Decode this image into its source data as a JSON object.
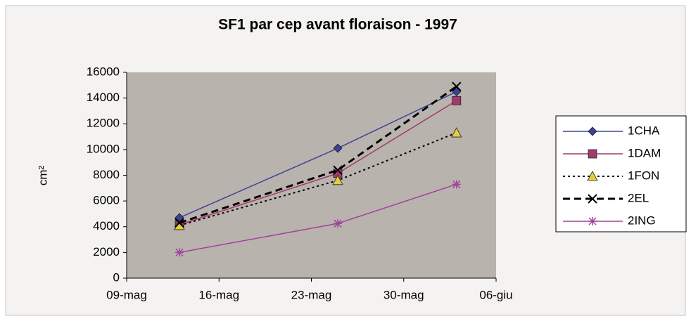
{
  "chart_data": {
    "type": "line",
    "title": "SF1 par cep avant floraison - 1997",
    "ylabel": "cm²",
    "x": [
      "13-mag",
      "25-mag",
      "03-giu"
    ],
    "xlim": [
      "09-mag",
      "06-giu"
    ],
    "xticks": [
      "09-mag",
      "16-mag",
      "23-mag",
      "30-mag",
      "06-giu"
    ],
    "ylim": [
      0,
      16000
    ],
    "yticks": [
      0,
      2000,
      4000,
      6000,
      8000,
      10000,
      12000,
      14000,
      16000
    ],
    "grid": false,
    "legend": "right",
    "series": [
      {
        "name": "1CHA",
        "color": "#3c4396",
        "dash": "solid",
        "marker": "diamond",
        "values": [
          4700,
          10100,
          14500
        ]
      },
      {
        "name": "1DAM",
        "color": "#a23a6e",
        "dash": "solid",
        "marker": "square",
        "values": [
          4150,
          8150,
          13800
        ]
      },
      {
        "name": "1FON",
        "color": "#000000",
        "dash": "dotted",
        "marker": "triangle",
        "markerColor": "#e6cd3c",
        "values": [
          4100,
          7600,
          11300
        ]
      },
      {
        "name": "2EL",
        "color": "#000000",
        "dash": "dashed",
        "marker": "x",
        "values": [
          4300,
          8400,
          14900
        ]
      },
      {
        "name": "2ING",
        "color": "#a0449a",
        "dash": "solid",
        "marker": "star",
        "values": [
          2000,
          4250,
          7300
        ]
      }
    ]
  }
}
